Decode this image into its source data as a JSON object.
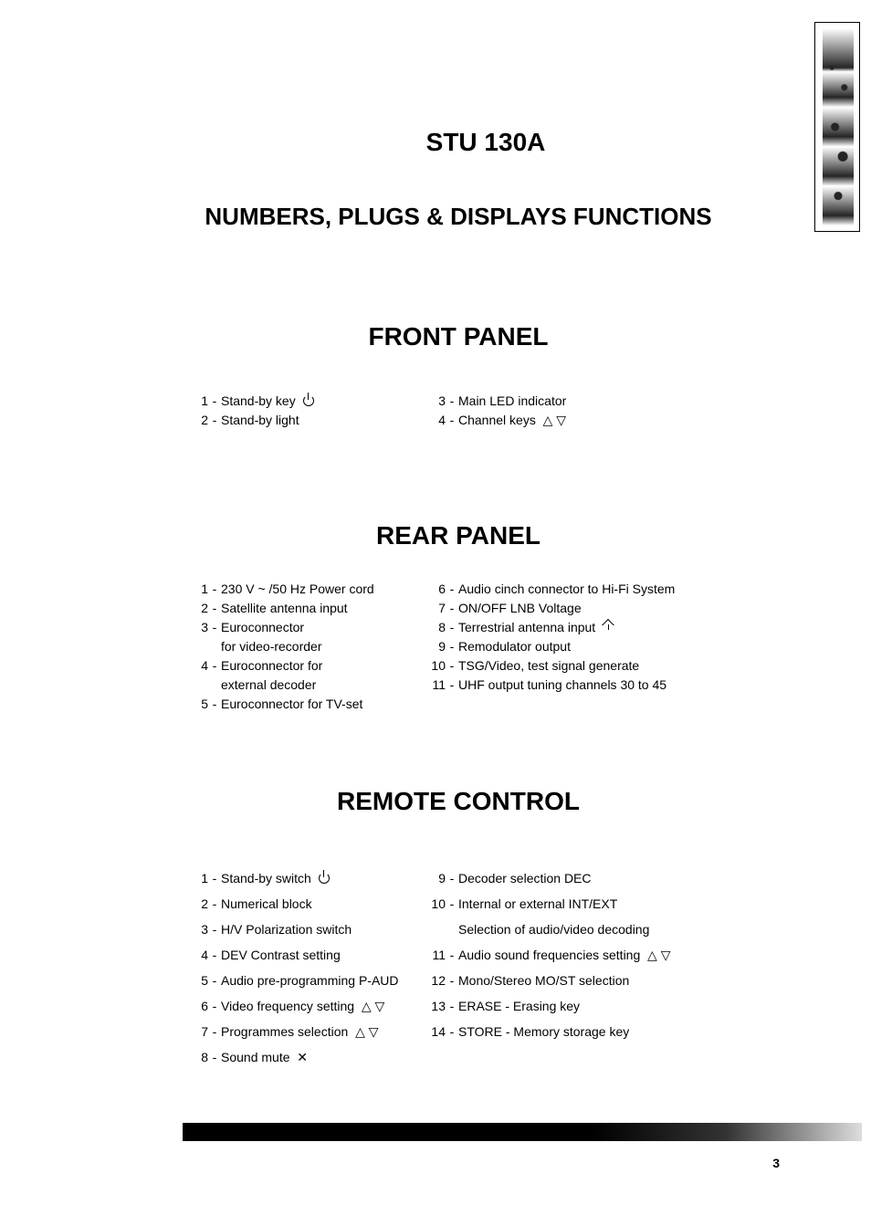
{
  "title": "STU 130A",
  "subtitle": "NUMBERS, PLUGS & DISPLAYS FUNCTIONS",
  "page_number": "3",
  "sections": {
    "front": {
      "heading": "FRONT PANEL",
      "left": [
        {
          "n": "1",
          "t": "Stand-by key",
          "icon": "power"
        },
        {
          "n": "2",
          "t": "Stand-by light"
        }
      ],
      "right": [
        {
          "n": "3",
          "t": "Main LED indicator"
        },
        {
          "n": "4",
          "t": "Channel keys",
          "icon": "updown"
        }
      ]
    },
    "rear": {
      "heading": "REAR PANEL",
      "left": [
        {
          "n": "1",
          "t": "230 V ~ /50 Hz Power cord"
        },
        {
          "n": "2",
          "t": "Satellite antenna input"
        },
        {
          "n": "3",
          "t": "Euroconnector"
        },
        {
          "sub": "for video-recorder"
        },
        {
          "n": "4",
          "t": "Euroconnector for"
        },
        {
          "sub": "external decoder"
        },
        {
          "n": "5",
          "t": "Euroconnector for TV-set"
        }
      ],
      "right": [
        {
          "n": "6",
          "t": "Audio cinch connector to Hi-Fi System"
        },
        {
          "n": "7",
          "t": "ON/OFF LNB Voltage"
        },
        {
          "n": "8",
          "t": "Terrestrial antenna input",
          "icon": "antenna"
        },
        {
          "n": "9",
          "t": "Remodulator output"
        },
        {
          "n": "10",
          "t": "TSG/Video, test signal generate"
        },
        {
          "n": "11",
          "t": "UHF output tuning channels 30 to 45"
        }
      ]
    },
    "remote": {
      "heading": "REMOTE CONTROL",
      "left": [
        {
          "n": "1",
          "t": "Stand-by switch",
          "icon": "power"
        },
        {
          "n": "2",
          "t": "Numerical block"
        },
        {
          "n": "3",
          "t": "H/V Polarization switch"
        },
        {
          "n": "4",
          "t": "DEV Contrast setting"
        },
        {
          "n": "5",
          "t": "Audio pre-programming P-AUD"
        },
        {
          "n": "6",
          "t": "Video frequency setting",
          "icon": "updown"
        },
        {
          "n": "7",
          "t": "Programmes selection",
          "icon": "updown"
        },
        {
          "n": "8",
          "t": "Sound mute",
          "icon": "mute"
        }
      ],
      "right": [
        {
          "n": "9",
          "t": "Decoder selection DEC"
        },
        {
          "n": "10",
          "t": "Internal or external INT/EXT"
        },
        {
          "sub": "Selection of audio/video decoding"
        },
        {
          "n": "11",
          "t": "Audio sound frequencies setting",
          "icon": "updown"
        },
        {
          "n": "12",
          "t": "Mono/Stereo MO/ST selection"
        },
        {
          "n": "13",
          "t": "ERASE - Erasing key"
        },
        {
          "n": "14",
          "t": "STORE - Memory storage key"
        }
      ]
    }
  }
}
